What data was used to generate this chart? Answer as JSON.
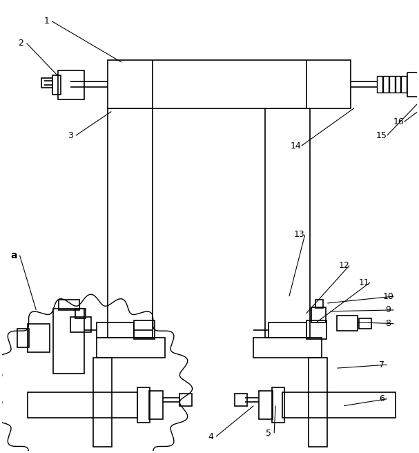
{
  "bg_color": "#ffffff",
  "line_color": "#000000",
  "lw": 1.2,
  "fig_width": 6.07,
  "fig_height": 6.56
}
